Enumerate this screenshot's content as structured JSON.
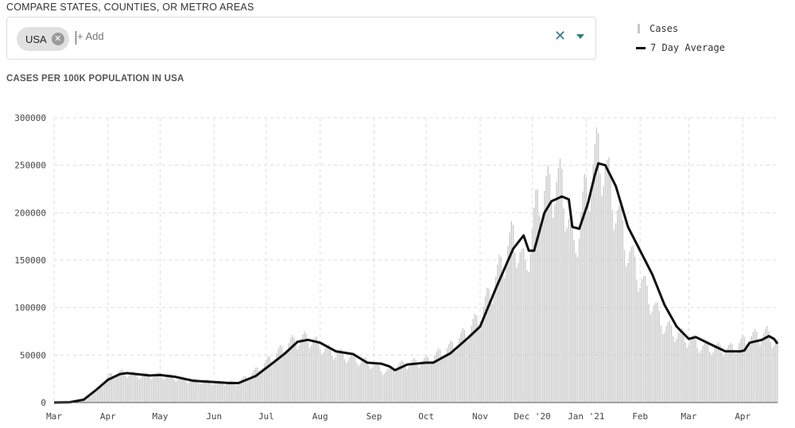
{
  "compare": {
    "label": "COMPARE STATES, COUNTIES, OR METRO AREAS",
    "chip_label": "USA",
    "add_placeholder": "+ Add"
  },
  "legend": {
    "cases_label": "Cases",
    "avg_label": "7 Day Average"
  },
  "chart_title": "CASES PER 100K POPULATION IN USA",
  "chart_data": {
    "type": "bar",
    "title": "CASES PER 100K POPULATION IN USA",
    "xlabel": "",
    "ylabel": "",
    "x_start": "2020-03-01",
    "x_end": "2021-04-21",
    "ylim": [
      0,
      300000
    ],
    "y_ticks": [
      0,
      50000,
      100000,
      150000,
      200000,
      250000,
      300000
    ],
    "x_ticks": [
      "Mar",
      "Apr",
      "May",
      "Jun",
      "Jul",
      "Aug",
      "Sep",
      "Oct",
      "Nov",
      "Dec '20",
      "Jan '21",
      "Feb",
      "Mar",
      "Apr"
    ],
    "grid": true,
    "legend_position": "top-right",
    "series": [
      {
        "name": "Cases",
        "kind": "bar",
        "color": "#c8c8c8",
        "knots": [
          [
            "2020-03-01",
            0
          ],
          [
            "2020-03-15",
            1000
          ],
          [
            "2020-03-20",
            5000
          ],
          [
            "2020-03-25",
            12000
          ],
          [
            "2020-04-01",
            26000
          ],
          [
            "2020-04-05",
            32000
          ],
          [
            "2020-04-10",
            31000
          ],
          [
            "2020-04-20",
            28000
          ],
          [
            "2020-05-01",
            29000
          ],
          [
            "2020-05-15",
            24000
          ],
          [
            "2020-06-01",
            21000
          ],
          [
            "2020-06-15",
            21000
          ],
          [
            "2020-06-25",
            33000
          ],
          [
            "2020-07-05",
            48000
          ],
          [
            "2020-07-15",
            63000
          ],
          [
            "2020-07-25",
            68000
          ],
          [
            "2020-08-05",
            55000
          ],
          [
            "2020-08-20",
            46000
          ],
          [
            "2020-09-01",
            40000
          ],
          [
            "2020-09-08",
            32000
          ],
          [
            "2020-09-15",
            39000
          ],
          [
            "2020-10-01",
            44000
          ],
          [
            "2020-10-15",
            58000
          ],
          [
            "2020-10-25",
            75000
          ],
          [
            "2020-11-01",
            90000
          ],
          [
            "2020-11-10",
            130000
          ],
          [
            "2020-11-20",
            175000
          ],
          [
            "2020-11-27",
            140000
          ],
          [
            "2020-12-04",
            210000
          ],
          [
            "2020-12-11",
            225000
          ],
          [
            "2020-12-18",
            230000
          ],
          [
            "2020-12-25",
            160000
          ],
          [
            "2020-12-31",
            215000
          ],
          [
            "2021-01-08",
            265000
          ],
          [
            "2021-01-15",
            225000
          ],
          [
            "2021-01-25",
            160000
          ],
          [
            "2021-02-05",
            115000
          ],
          [
            "2021-02-15",
            80000
          ],
          [
            "2021-02-25",
            70000
          ],
          [
            "2021-03-10",
            58000
          ],
          [
            "2021-03-25",
            56000
          ],
          [
            "2021-04-05",
            68000
          ],
          [
            "2021-04-15",
            72000
          ],
          [
            "2021-04-21",
            62000
          ]
        ]
      },
      {
        "name": "7 Day Average",
        "kind": "line",
        "color": "#111111",
        "points": [
          [
            "2020-03-01",
            0
          ],
          [
            "2020-03-10",
            300
          ],
          [
            "2020-03-18",
            3000
          ],
          [
            "2020-03-25",
            13000
          ],
          [
            "2020-04-01",
            24000
          ],
          [
            "2020-04-08",
            30000
          ],
          [
            "2020-04-12",
            31000
          ],
          [
            "2020-04-25",
            28500
          ],
          [
            "2020-05-01",
            29000
          ],
          [
            "2020-05-10",
            27000
          ],
          [
            "2020-05-20",
            23000
          ],
          [
            "2020-06-01",
            21500
          ],
          [
            "2020-06-10",
            20500
          ],
          [
            "2020-06-15",
            20500
          ],
          [
            "2020-06-25",
            28000
          ],
          [
            "2020-07-05",
            42000
          ],
          [
            "2020-07-12",
            52000
          ],
          [
            "2020-07-19",
            64000
          ],
          [
            "2020-07-25",
            66000
          ],
          [
            "2020-08-01",
            63000
          ],
          [
            "2020-08-10",
            54000
          ],
          [
            "2020-08-20",
            51000
          ],
          [
            "2020-08-28",
            42000
          ],
          [
            "2020-09-05",
            41000
          ],
          [
            "2020-09-10",
            38000
          ],
          [
            "2020-09-13",
            34000
          ],
          [
            "2020-09-20",
            40000
          ],
          [
            "2020-10-01",
            42000
          ],
          [
            "2020-10-05",
            42000
          ],
          [
            "2020-10-15",
            52000
          ],
          [
            "2020-10-25",
            68000
          ],
          [
            "2020-11-01",
            80000
          ],
          [
            "2020-11-10",
            120000
          ],
          [
            "2020-11-20",
            162000
          ],
          [
            "2020-11-26",
            176000
          ],
          [
            "2020-11-29",
            160000
          ],
          [
            "2020-12-02",
            160000
          ],
          [
            "2020-12-08",
            200000
          ],
          [
            "2020-12-12",
            212000
          ],
          [
            "2020-12-18",
            217000
          ],
          [
            "2020-12-22",
            214000
          ],
          [
            "2020-12-24",
            185000
          ],
          [
            "2020-12-28",
            183000
          ],
          [
            "2021-01-02",
            210000
          ],
          [
            "2021-01-06",
            240000
          ],
          [
            "2021-01-08",
            252000
          ],
          [
            "2021-01-12",
            250000
          ],
          [
            "2021-01-18",
            228000
          ],
          [
            "2021-01-25",
            185000
          ],
          [
            "2021-02-01",
            160000
          ],
          [
            "2021-02-08",
            135000
          ],
          [
            "2021-02-15",
            103000
          ],
          [
            "2021-02-22",
            80000
          ],
          [
            "2021-03-01",
            67000
          ],
          [
            "2021-03-05",
            69000
          ],
          [
            "2021-03-15",
            60000
          ],
          [
            "2021-03-22",
            54000
          ],
          [
            "2021-03-31",
            54000
          ],
          [
            "2021-04-02",
            55000
          ],
          [
            "2021-04-05",
            63000
          ],
          [
            "2021-04-12",
            66000
          ],
          [
            "2021-04-16",
            70000
          ],
          [
            "2021-04-19",
            67000
          ],
          [
            "2021-04-21",
            62000
          ]
        ]
      }
    ]
  }
}
